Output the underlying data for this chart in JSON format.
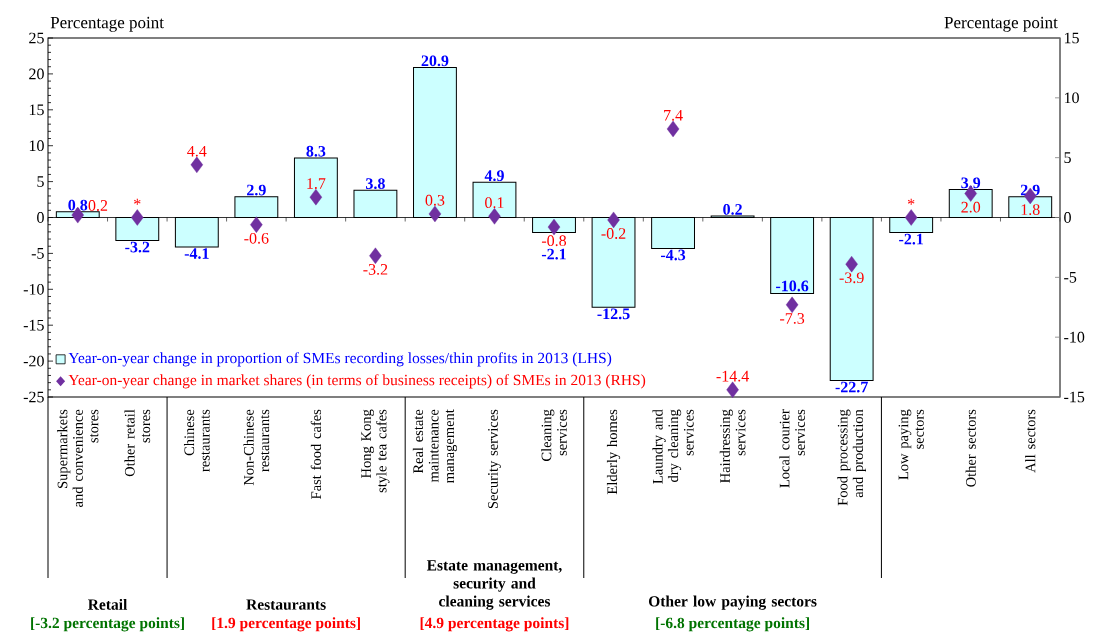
{
  "chart_data": {
    "type": "bar",
    "ylabel": "Percentage point",
    "y2label": "Percentage point",
    "categories": [
      "Supermarkets and convenience stores",
      "Other retail stores",
      "Chinese restaurants",
      "Non-Chinese restaurants",
      "Fast food cafes",
      "Hong Kong style tea cafes",
      "Real estate maintenance management",
      "Security services",
      "Cleaning services",
      "Elderly homes",
      "Laundry and dry cleaning services",
      "Hairdressing services",
      "Local courier services",
      "Food processing and production",
      "Low paying sectors",
      "Other sectors",
      "All sectors"
    ],
    "series": [
      {
        "name": "Year-on-year change in proportion of SMEs recording losses/thin profits in 2013 (LHS)",
        "color": "#ccffff",
        "values": [
          0.8,
          -3.2,
          -4.1,
          2.9,
          8.3,
          3.8,
          20.9,
          4.9,
          -2.1,
          -12.5,
          -4.3,
          0.2,
          -10.6,
          -22.7,
          -2.1,
          3.9,
          2.9
        ]
      },
      {
        "name": "Year-on-year change in market shares (in terms of business receipts) of SMEs in 2013 (RHS)",
        "type": "scatter",
        "axis": "y2",
        "color": "#7030a0",
        "marker": "diamond",
        "values": [
          0.2,
          0.0,
          4.4,
          -0.6,
          1.7,
          -3.2,
          0.3,
          0.1,
          -0.8,
          -0.2,
          7.4,
          -14.4,
          -7.3,
          -3.9,
          0.0,
          2.0,
          1.8
        ],
        "value_labels": [
          "0.2",
          "*",
          "4.4",
          "-0.6",
          "1.7",
          "-3.2",
          "0.3",
          "0.1",
          "-0.8",
          "-0.2",
          "7.4",
          "-14.4",
          "-7.3",
          "-3.9",
          "*",
          "2.0",
          "1.8"
        ]
      }
    ],
    "data_labels": true,
    "ylim": [
      -25,
      25
    ],
    "yticks": [
      -25,
      -20,
      -15,
      -10,
      -5,
      0,
      5,
      10,
      15,
      20,
      25
    ],
    "y2lim": [
      -15,
      15
    ],
    "y2ticks": [
      -15,
      -10,
      -5,
      0,
      5,
      10,
      15
    ],
    "legend": "bottom left",
    "annotations": [
      "Retail",
      "[-3.2 percentage points]",
      "Restaurants",
      "[1.9 percentage points]",
      "Estate management, security and cleaning services",
      "[4.9 percentage points]",
      "Other low paying sectors",
      "[-6.8 percentage points]"
    ]
  }
}
